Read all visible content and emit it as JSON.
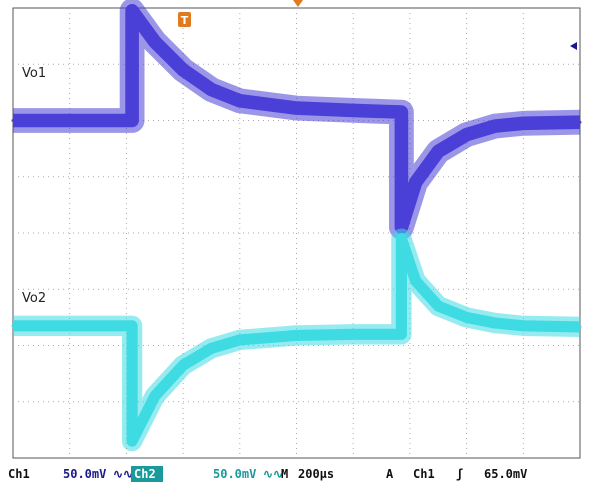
{
  "colors": {
    "ch1": "#4a3fd6",
    "ch2": "#3fdbe3",
    "trigger": "#e07a1f",
    "grid_dots": "#aaaaaa",
    "frame": "#555555",
    "status_bar_text": "#111111",
    "ch2_badge_bg": "#1a9a9a"
  },
  "labels": {
    "trace1": "Vo1",
    "trace2": "Vo2",
    "trigger_marker": "T"
  },
  "status_bar": {
    "ch1_name": "Ch1",
    "ch1_scale": "50.0mV",
    "ch1_coupling": "∿∿",
    "ch2_name": "Ch2",
    "ch2_scale": "50.0mV",
    "ch2_coupling": "∿∿",
    "timebase_label": "M",
    "timebase": "200µs",
    "trigger_mode": "A",
    "trigger_source": "Ch1",
    "trigger_slope": "ʃ",
    "trigger_level": "65.0mV"
  },
  "chart_data": {
    "type": "line",
    "x_unit": "divisions (200µs/div)",
    "xlim": [
      0,
      10
    ],
    "ylim": [
      -4,
      4
    ],
    "grid": true,
    "series": [
      {
        "channel": "Ch1",
        "x": [
          0.0,
          2.1,
          2.1,
          2.5,
          3.0,
          3.5,
          4.0,
          5.0,
          6.0,
          6.85,
          6.85,
          7.1,
          7.5,
          8.0,
          8.5,
          9.0,
          10.0
        ],
        "y": [
          2.0,
          2.0,
          3.95,
          3.4,
          2.9,
          2.55,
          2.35,
          2.22,
          2.18,
          2.15,
          0.1,
          0.9,
          1.45,
          1.75,
          1.9,
          1.95,
          1.97
        ],
        "noise": 0.22
      },
      {
        "channel": "Ch2",
        "x": [
          0.0,
          2.1,
          2.1,
          2.5,
          3.0,
          3.5,
          4.0,
          5.0,
          6.0,
          6.85,
          6.85,
          7.1,
          7.5,
          8.0,
          8.5,
          9.0,
          10.0
        ],
        "y": [
          -1.65,
          -1.65,
          -3.7,
          -2.9,
          -2.35,
          -2.05,
          -1.9,
          -1.82,
          -1.8,
          -1.8,
          -0.1,
          -0.85,
          -1.3,
          -1.5,
          -1.6,
          -1.65,
          -1.67
        ],
        "noise": 0.18
      }
    ]
  }
}
